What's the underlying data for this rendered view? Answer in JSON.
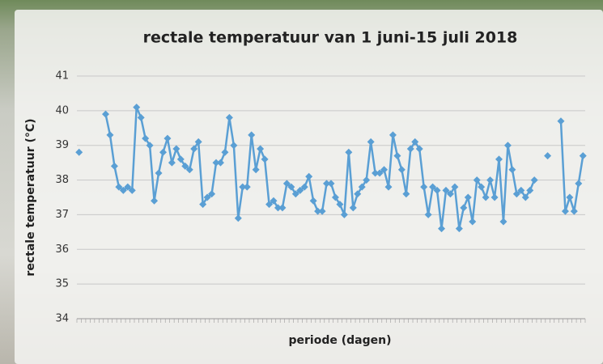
{
  "chart_data": {
    "type": "line",
    "title": "rectale temperatuur van 1 juni-15 juli 2018",
    "x_label": "periode (dagen)",
    "y_label": "rectale temperatuur (°C)",
    "categories": [
      null,
      null,
      null,
      null,
      null,
      null,
      null,
      null,
      null,
      null,
      null,
      null,
      null,
      null,
      null,
      null,
      null,
      null,
      null,
      null,
      null,
      null,
      null,
      null,
      null,
      null,
      null,
      null,
      null,
      null,
      null,
      null,
      null,
      null,
      null,
      null,
      null,
      null,
      null,
      null,
      null,
      null,
      null,
      null,
      null,
      null,
      null,
      null,
      null,
      null,
      null,
      null,
      null,
      null,
      null,
      null,
      null,
      null,
      null,
      null,
      null,
      null,
      null,
      null,
      null,
      null,
      null,
      null,
      null,
      null,
      null,
      null,
      null,
      null,
      null,
      null,
      null,
      null,
      null,
      null,
      null,
      null,
      null,
      null,
      null,
      null,
      null,
      null,
      null,
      null,
      null,
      null,
      null,
      null,
      null,
      null,
      null,
      null,
      null,
      null,
      null,
      null,
      null,
      null,
      null,
      null,
      null,
      null,
      null,
      null,
      null,
      null,
      null,
      null,
      null
    ],
    "series": [
      {
        "color": "#5a9fd4",
        "values": [
          38.8,
          null,
          null,
          null,
          null,
          null,
          39.9,
          39.3,
          38.4,
          37.8,
          37.7,
          37.8,
          37.7,
          40.1,
          39.8,
          39.2,
          39.0,
          37.4,
          38.2,
          38.8,
          39.2,
          38.5,
          38.9,
          38.6,
          38.4,
          38.3,
          38.9,
          39.1,
          37.3,
          37.5,
          37.6,
          38.5,
          38.5,
          38.8,
          39.8,
          39.0,
          36.9,
          37.8,
          37.8,
          39.3,
          38.3,
          38.9,
          38.6,
          37.3,
          37.4,
          37.2,
          37.2,
          37.9,
          37.8,
          37.6,
          37.7,
          37.8,
          38.1,
          37.4,
          37.1,
          37.1,
          37.9,
          37.9,
          37.5,
          37.3,
          37.0,
          38.8,
          37.2,
          37.6,
          37.8,
          38.0,
          39.1,
          38.2,
          38.2,
          38.3,
          37.8,
          39.3,
          38.7,
          38.3,
          37.6,
          38.9,
          39.1,
          38.9,
          37.8,
          37.0,
          37.8,
          37.7,
          36.6,
          37.7,
          37.6,
          37.8,
          36.6,
          37.2,
          37.5,
          36.8,
          38.0,
          37.8,
          37.5,
          38.0,
          37.5,
          38.6,
          36.8,
          39.0,
          38.3,
          37.6,
          37.7,
          37.5,
          37.7,
          38.0,
          null,
          null,
          38.7,
          null,
          null,
          39.7,
          37.1,
          37.5,
          37.1,
          37.9,
          38.7
        ]
      }
    ],
    "ylim": [
      34,
      41
    ],
    "yticks": [
      34,
      35,
      36,
      37,
      38,
      39,
      40,
      41
    ],
    "grid": true
  }
}
